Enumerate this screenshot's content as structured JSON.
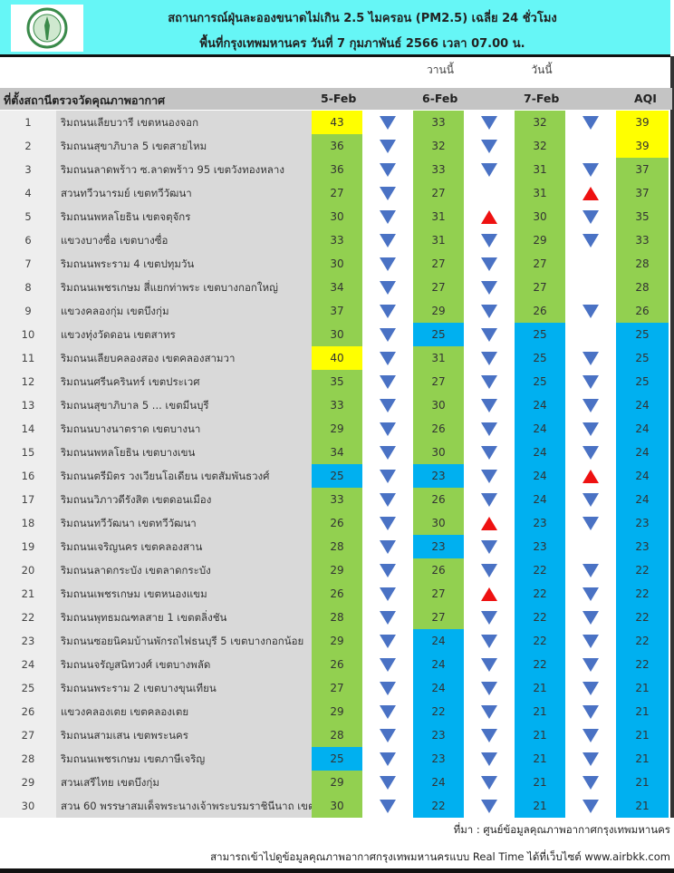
{
  "header": {
    "title": "สถานการณ์ฝุ่นละอองขนาดไม่เกิน 2.5 ไมครอน (PM2.5) เฉลี่ย 24 ชั่วโมง",
    "subtitle": "พื้นที่กรุงเทพมหานคร วันที่ 7 กุมภาพันธ์ 2566 เวลา 07.00 น.",
    "logo": "bangkok-seal"
  },
  "labels": {
    "yesterday": "วานนี้",
    "today": "วันนี้"
  },
  "columns": {
    "station": "ที่ตั้งสถานีตรวจวัดคุณภาพอากาศ",
    "d1": "5-Feb",
    "d2": "6-Feb",
    "d3": "7-Feb",
    "aqi": "AQI"
  },
  "colors": {
    "yellow": "#ffff00",
    "green": "#92d050",
    "blue": "#00b0f0",
    "arrow_down": "#4a72c4",
    "arrow_up": "#ee1111"
  },
  "rows": [
    {
      "n": "1",
      "s": "ริมถนนเลียบวารี เขตหนองจอก",
      "v": [
        43,
        33,
        32
      ],
      "a": [
        "down",
        "down",
        "down"
      ],
      "aqi": 39
    },
    {
      "n": "2",
      "s": "ริมถนนสุขาภิบาล 5 เขตสายไหม",
      "v": [
        36,
        32,
        32
      ],
      "a": [
        "down",
        "down",
        ""
      ],
      "aqi": 39
    },
    {
      "n": "3",
      "s": "ริมถนนลาดพร้าว ซ.ลาดพร้าว 95 เขตวังทองหลาง",
      "v": [
        36,
        33,
        31
      ],
      "a": [
        "down",
        "down",
        "down"
      ],
      "aqi": 37
    },
    {
      "n": "4",
      "s": "สวนทวีวนารมย์ เขตทวีวัฒนา",
      "v": [
        27,
        27,
        31
      ],
      "a": [
        "down",
        "",
        "up"
      ],
      "aqi": 37
    },
    {
      "n": "5",
      "s": "ริมถนนพหลโยธิน เขตจตุจักร",
      "v": [
        30,
        31,
        30
      ],
      "a": [
        "down",
        "up",
        "down"
      ],
      "aqi": 35
    },
    {
      "n": "6",
      "s": "แขวงบางซื่อ เขตบางซื่อ",
      "v": [
        33,
        31,
        29
      ],
      "a": [
        "down",
        "down",
        "down"
      ],
      "aqi": 33
    },
    {
      "n": "7",
      "s": "ริมถนนพระราม 4 เขตปทุมวัน",
      "v": [
        30,
        27,
        27
      ],
      "a": [
        "down",
        "down",
        ""
      ],
      "aqi": 28
    },
    {
      "n": "8",
      "s": "ริมถนนเพชรเกษม สี่แยกท่าพระ เขตบางกอกใหญ่",
      "v": [
        34,
        27,
        27
      ],
      "a": [
        "down",
        "down",
        ""
      ],
      "aqi": 28
    },
    {
      "n": "9",
      "s": "แขวงคลองกุ่ม เขตบึงกุ่ม",
      "v": [
        37,
        29,
        26
      ],
      "a": [
        "down",
        "down",
        "down"
      ],
      "aqi": 26
    },
    {
      "n": "10",
      "s": "แขวงทุ่งวัดดอน เขตสาทร",
      "v": [
        30,
        25,
        25
      ],
      "a": [
        "down",
        "down",
        ""
      ],
      "aqi": 25
    },
    {
      "n": "11",
      "s": "ริมถนนเลียบคลองสอง เขตคลองสามวา",
      "v": [
        40,
        31,
        25
      ],
      "a": [
        "down",
        "down",
        "down"
      ],
      "aqi": 25
    },
    {
      "n": "12",
      "s": "ริมถนนศรีนครินทร์ เขตประเวศ",
      "v": [
        35,
        27,
        25
      ],
      "a": [
        "down",
        "down",
        "down"
      ],
      "aqi": 25
    },
    {
      "n": "13",
      "s": "ริมถนนสุขาภิบาล 5 ... เขตมีนบุรี",
      "v": [
        33,
        30,
        24
      ],
      "a": [
        "down",
        "down",
        "down"
      ],
      "aqi": 24
    },
    {
      "n": "14",
      "s": "ริมถนนบางนาตราด เขตบางนา",
      "v": [
        29,
        26,
        24
      ],
      "a": [
        "down",
        "down",
        "down"
      ],
      "aqi": 24
    },
    {
      "n": "15",
      "s": "ริมถนนพหลโยธิน เขตบางเขน",
      "v": [
        34,
        30,
        24
      ],
      "a": [
        "down",
        "down",
        "down"
      ],
      "aqi": 24
    },
    {
      "n": "16",
      "s": "ริมถนนตรีมิตร วงเวียนโอเดียน เขตสัมพันธวงศ์",
      "v": [
        25,
        23,
        24
      ],
      "a": [
        "down",
        "down",
        "up"
      ],
      "aqi": 24
    },
    {
      "n": "17",
      "s": "ริมถนนวิภาวดีรังสิต เขตดอนเมือง",
      "v": [
        33,
        26,
        24
      ],
      "a": [
        "down",
        "down",
        "down"
      ],
      "aqi": 24
    },
    {
      "n": "18",
      "s": "ริมถนนทวีวัฒนา เขตทวีวัฒนา",
      "v": [
        26,
        30,
        23
      ],
      "a": [
        "down",
        "up",
        "down"
      ],
      "aqi": 23
    },
    {
      "n": "19",
      "s": "ริมถนนเจริญนคร เขตคลองสาน",
      "v": [
        28,
        23,
        23
      ],
      "a": [
        "down",
        "down",
        ""
      ],
      "aqi": 23
    },
    {
      "n": "20",
      "s": "ริมถนนลาดกระบัง เขตลาดกระบัง",
      "v": [
        29,
        26,
        22
      ],
      "a": [
        "down",
        "down",
        "down"
      ],
      "aqi": 22
    },
    {
      "n": "21",
      "s": "ริมถนนเพชรเกษม เขตหนองแขม",
      "v": [
        26,
        27,
        22
      ],
      "a": [
        "down",
        "up",
        "down"
      ],
      "aqi": 22
    },
    {
      "n": "22",
      "s": "ริมถนนพุทธมณฑลสาย 1 เขตตลิ่งชัน",
      "v": [
        28,
        27,
        22
      ],
      "a": [
        "down",
        "down",
        "down"
      ],
      "aqi": 22
    },
    {
      "n": "23",
      "s": "ริมถนนซอยนิคมบ้านพักรถไฟธนบุรี 5 เขตบางกอกน้อย",
      "v": [
        29,
        24,
        22
      ],
      "a": [
        "down",
        "down",
        "down"
      ],
      "aqi": 22
    },
    {
      "n": "24",
      "s": "ริมถนนจรัญสนิทวงศ์ เขตบางพลัด",
      "v": [
        26,
        24,
        22
      ],
      "a": [
        "down",
        "down",
        "down"
      ],
      "aqi": 22
    },
    {
      "n": "25",
      "s": "ริมถนนพระราม 2 เขตบางขุนเทียน",
      "v": [
        27,
        24,
        21
      ],
      "a": [
        "down",
        "down",
        "down"
      ],
      "aqi": 21
    },
    {
      "n": "26",
      "s": "แขวงคลองเตย เขตคลองเตย",
      "v": [
        29,
        22,
        21
      ],
      "a": [
        "down",
        "down",
        "down"
      ],
      "aqi": 21
    },
    {
      "n": "27",
      "s": "ริมถนนสามเสน เขตพระนคร",
      "v": [
        28,
        23,
        21
      ],
      "a": [
        "down",
        "down",
        "down"
      ],
      "aqi": 21
    },
    {
      "n": "28",
      "s": "ริมถนนเพชรเกษม เขตภาษีเจริญ",
      "v": [
        25,
        23,
        21
      ],
      "a": [
        "down",
        "down",
        "down"
      ],
      "aqi": 21
    },
    {
      "n": "29",
      "s": "สวนเสรีไทย  เขตบึงกุ่ม",
      "v": [
        29,
        24,
        21
      ],
      "a": [
        "down",
        "down",
        "down"
      ],
      "aqi": 21
    },
    {
      "n": "30",
      "s": "สวน 60 พรรษาสมเด็จพระนางเจ้าพระบรมราชินีนาถ เขต",
      "v": [
        30,
        22,
        21
      ],
      "a": [
        "down",
        "down",
        "down"
      ],
      "aqi": 21
    }
  ],
  "footer": {
    "source": "ที่มา : ศูนย์ข้อมูลคุณภาพอากาศกรุงเทพมหานคร",
    "note": "สามารถเข้าไปดูข้อมูลคุณภาพอากาศกรุงเทพมหานครแบบ Real Time ได้ที่เว็บไซต์ www.airbkk.com"
  }
}
